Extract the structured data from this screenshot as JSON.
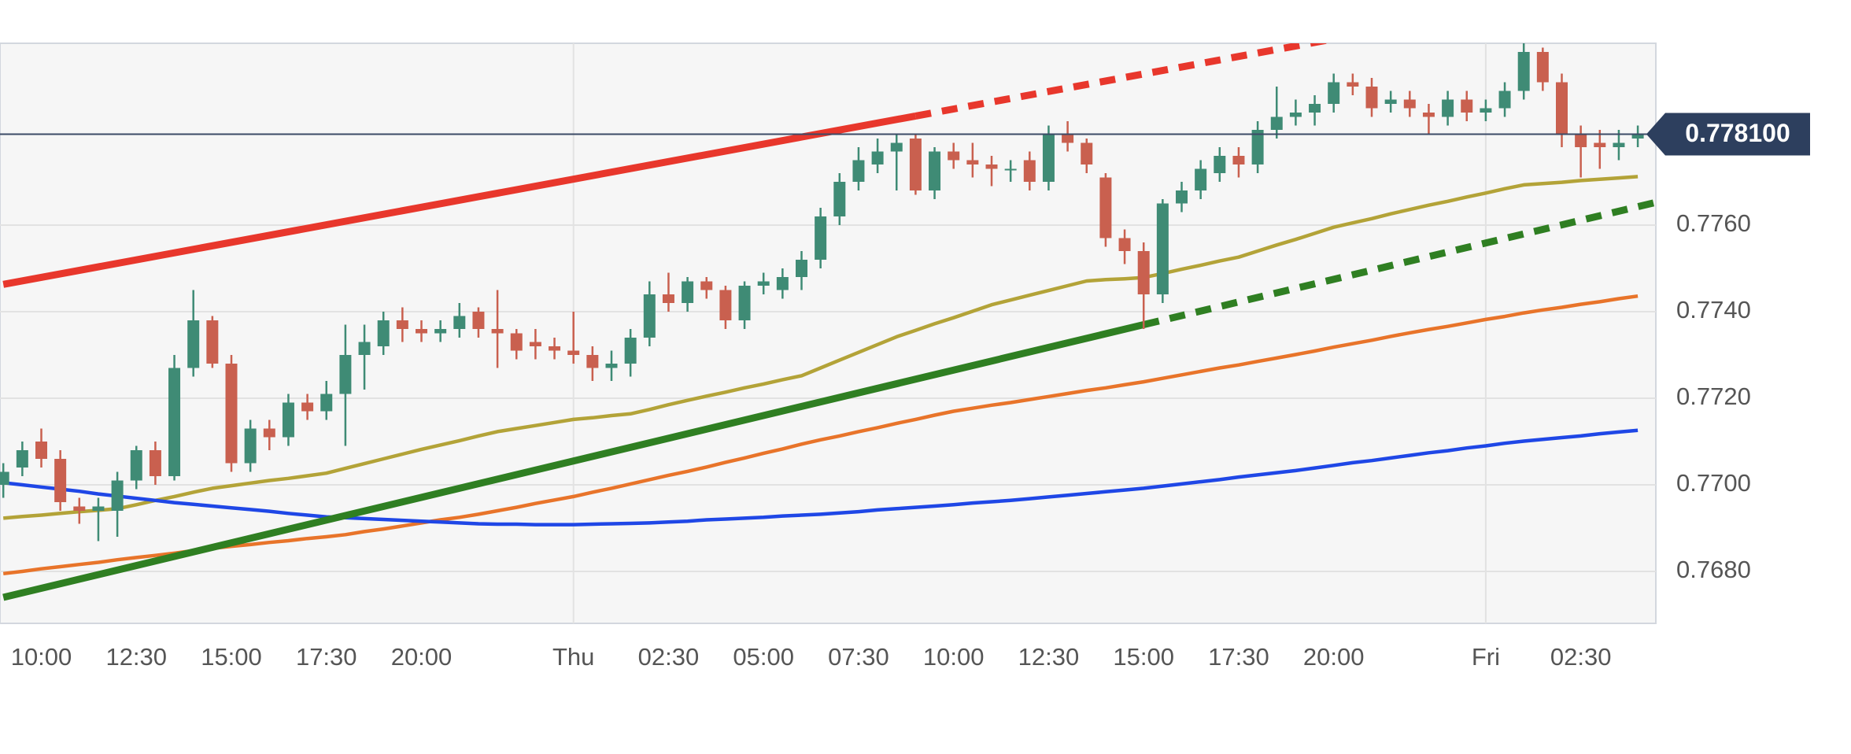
{
  "chart_data": {
    "type": "candlestick",
    "categories": [
      null,
      null,
      "10:00",
      null,
      null,
      null,
      null,
      "12:30",
      null,
      null,
      null,
      null,
      "15:00",
      null,
      null,
      null,
      null,
      "17:30",
      null,
      null,
      null,
      null,
      "20:00",
      null,
      null,
      null,
      null,
      null,
      null,
      null,
      "Thu",
      null,
      null,
      null,
      null,
      "02:30",
      null,
      null,
      null,
      null,
      "05:00",
      null,
      null,
      null,
      null,
      "07:30",
      null,
      null,
      null,
      null,
      "10:00",
      null,
      null,
      null,
      null,
      "12:30",
      null,
      null,
      null,
      null,
      "15:00",
      null,
      null,
      null,
      null,
      "17:30",
      null,
      null,
      null,
      null,
      "20:00",
      null,
      null,
      null,
      null,
      null,
      null,
      null,
      "Fri",
      null,
      null,
      null,
      null,
      "02:30",
      null,
      null,
      null
    ],
    "open": [
      0.77,
      0.7704,
      0.771,
      0.7706,
      0.7695,
      0.7694,
      0.7694,
      0.7701,
      0.7708,
      0.7702,
      0.7727,
      0.7738,
      0.7728,
      0.7705,
      0.7713,
      0.7711,
      0.7719,
      0.7717,
      0.7721,
      0.773,
      0.7732,
      0.7738,
      0.7736,
      0.7735,
      0.7736,
      0.774,
      0.7736,
      0.7735,
      0.7733,
      0.7732,
      0.7731,
      0.773,
      0.7727,
      0.7728,
      0.7734,
      0.7744,
      0.7742,
      0.7747,
      0.7745,
      0.7738,
      0.7746,
      0.7745,
      0.7748,
      0.7752,
      0.7762,
      0.777,
      0.7774,
      0.7777,
      0.778,
      0.7768,
      0.7777,
      0.7775,
      0.7774,
      0.7773,
      0.7775,
      0.777,
      0.7781,
      0.7779,
      0.7771,
      0.7757,
      0.7754,
      0.7744,
      0.7765,
      0.7768,
      0.7772,
      0.7776,
      0.7774,
      0.7782,
      0.7785,
      0.7786,
      0.7788,
      0.7793,
      0.7792,
      0.7788,
      0.7789,
      0.7786,
      0.7785,
      0.7789,
      0.7786,
      0.7787,
      0.7791,
      0.78,
      0.7793,
      0.7781,
      0.7779,
      0.7778,
      0.778
    ],
    "high": [
      0.7705,
      0.771,
      0.7713,
      0.7708,
      0.7697,
      0.7697,
      0.7703,
      0.7709,
      0.771,
      0.773,
      0.7745,
      0.7739,
      0.773,
      0.7715,
      0.7715,
      0.7721,
      0.7721,
      0.7724,
      0.7737,
      0.7737,
      0.774,
      0.7741,
      0.7738,
      0.7738,
      0.7742,
      0.7741,
      0.7745,
      0.7736,
      0.7736,
      0.7734,
      0.774,
      0.7732,
      0.7731,
      0.7736,
      0.7747,
      0.7749,
      0.7748,
      0.7748,
      0.7746,
      0.7747,
      0.7749,
      0.775,
      0.7754,
      0.7764,
      0.7772,
      0.7778,
      0.778,
      0.7781,
      0.7781,
      0.7778,
      0.7779,
      0.7779,
      0.7776,
      0.7775,
      0.7777,
      0.7783,
      0.7784,
      0.778,
      0.7772,
      0.7759,
      0.7756,
      0.7766,
      0.777,
      0.7775,
      0.7778,
      0.7778,
      0.7784,
      0.7792,
      0.7789,
      0.779,
      0.7795,
      0.7795,
      0.7794,
      0.7791,
      0.7791,
      0.7788,
      0.7791,
      0.7791,
      0.7789,
      0.7793,
      0.7802,
      0.7801,
      0.7795,
      0.7783,
      0.7782,
      0.7782,
      0.7783
    ],
    "low": [
      0.7697,
      0.7702,
      0.7704,
      0.7694,
      0.7691,
      0.7687,
      0.7688,
      0.7699,
      0.77,
      0.7701,
      0.7725,
      0.7727,
      0.7703,
      0.7703,
      0.7708,
      0.7709,
      0.7715,
      0.7715,
      0.7709,
      0.7722,
      0.773,
      0.7733,
      0.7733,
      0.7733,
      0.7734,
      0.7734,
      0.7727,
      0.7729,
      0.7729,
      0.7729,
      0.7728,
      0.7724,
      0.7724,
      0.7725,
      0.7732,
      0.774,
      0.774,
      0.7743,
      0.7736,
      0.7736,
      0.7744,
      0.7743,
      0.7745,
      0.775,
      0.776,
      0.7768,
      0.7772,
      0.7768,
      0.7767,
      0.7766,
      0.7773,
      0.7771,
      0.7769,
      0.777,
      0.7768,
      0.7768,
      0.7777,
      0.7772,
      0.7755,
      0.7751,
      0.7736,
      0.7742,
      0.7763,
      0.7766,
      0.777,
      0.7771,
      0.7772,
      0.778,
      0.7783,
      0.7783,
      0.7786,
      0.779,
      0.7785,
      0.7786,
      0.7785,
      0.7781,
      0.7783,
      0.7784,
      0.7784,
      0.7785,
      0.7789,
      0.7791,
      0.7778,
      0.7771,
      0.7773,
      0.7775,
      0.7778
    ],
    "close": [
      0.7703,
      0.7708,
      0.7706,
      0.7696,
      0.7694,
      0.7695,
      0.7701,
      0.7708,
      0.7702,
      0.7727,
      0.7738,
      0.7728,
      0.7705,
      0.7713,
      0.7711,
      0.7719,
      0.7717,
      0.7721,
      0.773,
      0.7733,
      0.7738,
      0.7736,
      0.7735,
      0.7736,
      0.7739,
      0.7736,
      0.7735,
      0.7731,
      0.7732,
      0.7731,
      0.773,
      0.7727,
      0.7728,
      0.7734,
      0.7744,
      0.7742,
      0.7747,
      0.7745,
      0.7738,
      0.7746,
      0.7747,
      0.7748,
      0.7752,
      0.7762,
      0.777,
      0.7775,
      0.7777,
      0.7779,
      0.7768,
      0.7777,
      0.7775,
      0.7774,
      0.7773,
      0.7773,
      0.777,
      0.7781,
      0.7779,
      0.7774,
      0.7757,
      0.7754,
      0.7744,
      0.7765,
      0.7768,
      0.7773,
      0.7776,
      0.7774,
      0.7782,
      0.7785,
      0.7786,
      0.7788,
      0.7793,
      0.7792,
      0.7787,
      0.7789,
      0.7787,
      0.7785,
      0.7789,
      0.7786,
      0.7787,
      0.7791,
      0.78,
      0.7793,
      0.7781,
      0.7778,
      0.7778,
      0.7779,
      0.7781
    ],
    "up_color": "#3f8b75",
    "down_color": "#c9604f",
    "overlays": [
      {
        "color": "#b3a338",
        "values": [
          0.76923,
          0.76927,
          0.7693,
          0.76934,
          0.76938,
          0.76941,
          0.76945,
          0.76954,
          0.76964,
          0.76973,
          0.76983,
          0.76992,
          0.76998,
          0.77004,
          0.7701,
          0.77015,
          0.77021,
          0.77027,
          0.77038,
          0.77049,
          0.7706,
          0.77071,
          0.77082,
          0.77092,
          0.77102,
          0.77113,
          0.77123,
          0.7713,
          0.77137,
          0.77144,
          0.77151,
          0.77155,
          0.7716,
          0.77164,
          0.77174,
          0.77185,
          0.77195,
          0.77205,
          0.77214,
          0.77224,
          0.77233,
          0.77243,
          0.77252,
          0.7727,
          0.77288,
          0.77306,
          0.77324,
          0.77342,
          0.77357,
          0.77372,
          0.77386,
          0.77401,
          0.77416,
          0.77427,
          0.77438,
          0.77449,
          0.7746,
          0.77471,
          0.77474,
          0.77476,
          0.77479,
          0.77488,
          0.77498,
          0.77507,
          0.77517,
          0.77526,
          0.7754,
          0.77554,
          0.77567,
          0.77581,
          0.77595,
          0.77605,
          0.77615,
          0.77626,
          0.77636,
          0.77646,
          0.77655,
          0.77665,
          0.77674,
          0.77684,
          0.77693,
          0.77696,
          0.77699,
          0.77703,
          0.77706,
          0.77709,
          0.77712
        ]
      },
      {
        "color": "#e8742a",
        "values": [
          0.76795,
          0.768,
          0.76806,
          0.76811,
          0.76816,
          0.76821,
          0.76827,
          0.76832,
          0.76837,
          0.76842,
          0.76848,
          0.76853,
          0.76858,
          0.76862,
          0.76867,
          0.76871,
          0.76876,
          0.7688,
          0.76885,
          0.76892,
          0.76898,
          0.76905,
          0.76912,
          0.76919,
          0.76925,
          0.76932,
          0.7694,
          0.76948,
          0.76957,
          0.76965,
          0.76973,
          0.76983,
          0.76992,
          0.77002,
          0.77012,
          0.77022,
          0.77031,
          0.77041,
          0.77052,
          0.77062,
          0.77073,
          0.77083,
          0.77094,
          0.77104,
          0.77113,
          0.77123,
          0.77132,
          0.77142,
          0.77151,
          0.77161,
          0.7717,
          0.77177,
          0.77184,
          0.7719,
          0.77197,
          0.77204,
          0.77211,
          0.77218,
          0.77224,
          0.77231,
          0.77238,
          0.77246,
          0.77254,
          0.77262,
          0.7727,
          0.77277,
          0.77285,
          0.77293,
          0.77301,
          0.77309,
          0.77318,
          0.77326,
          0.77334,
          0.77343,
          0.77351,
          0.77359,
          0.77366,
          0.77374,
          0.77382,
          0.77389,
          0.77397,
          0.77404,
          0.7741,
          0.77417,
          0.77423,
          0.7743,
          0.77436
        ]
      },
      {
        "color": "#1f47e6",
        "values": [
          0.77005,
          0.77,
          0.76995,
          0.7699,
          0.76985,
          0.76979,
          0.76974,
          0.76969,
          0.76964,
          0.76959,
          0.76955,
          0.76951,
          0.76947,
          0.76943,
          0.76939,
          0.76934,
          0.7693,
          0.76926,
          0.76924,
          0.76922,
          0.7692,
          0.76918,
          0.76916,
          0.76914,
          0.76912,
          0.7691,
          0.76909,
          0.76909,
          0.76908,
          0.76908,
          0.76908,
          0.76909,
          0.7691,
          0.76911,
          0.76912,
          0.76914,
          0.76916,
          0.76919,
          0.76921,
          0.76923,
          0.76925,
          0.76928,
          0.7693,
          0.76932,
          0.76935,
          0.76938,
          0.76942,
          0.76945,
          0.76948,
          0.76951,
          0.76954,
          0.76958,
          0.76961,
          0.76964,
          0.76968,
          0.76972,
          0.76976,
          0.7698,
          0.76984,
          0.76988,
          0.76992,
          0.76997,
          0.77002,
          0.77007,
          0.77012,
          0.77018,
          0.77023,
          0.77028,
          0.77033,
          0.77039,
          0.77045,
          0.77051,
          0.77056,
          0.77062,
          0.77068,
          0.77074,
          0.77079,
          0.77085,
          0.7709,
          0.77096,
          0.77101,
          0.77105,
          0.77109,
          0.77113,
          0.77118,
          0.77122,
          0.77126
        ]
      }
    ],
    "trendlines": [
      {
        "color": "#e8372c",
        "dashed": false,
        "from": [
          0,
          0.77463
        ],
        "to": [
          48,
          0.77852
        ]
      },
      {
        "color": "#e8372c",
        "dashed": true,
        "from": [
          48,
          0.77852
        ],
        "to": [
          70,
          0.7803
        ]
      },
      {
        "color": "#2f7f22",
        "dashed": false,
        "from": [
          0,
          0.7674
        ],
        "to": [
          60,
          0.7737
        ]
      },
      {
        "color": "#2f7f22",
        "dashed": true,
        "from": [
          60,
          0.7737
        ],
        "to": [
          87,
          0.77653
        ]
      }
    ],
    "last_price": {
      "value": 0.7781,
      "label": "0.778100"
    },
    "ylim": [
      0.7668,
      0.7802
    ],
    "yticks": [
      {
        "value": 0.768,
        "label": "0.7680"
      },
      {
        "value": 0.77,
        "label": "0.7700"
      },
      {
        "value": 0.772,
        "label": "0.7720"
      },
      {
        "value": 0.774,
        "label": "0.7740"
      },
      {
        "value": 0.776,
        "label": "0.7760"
      }
    ],
    "grid": true
  }
}
